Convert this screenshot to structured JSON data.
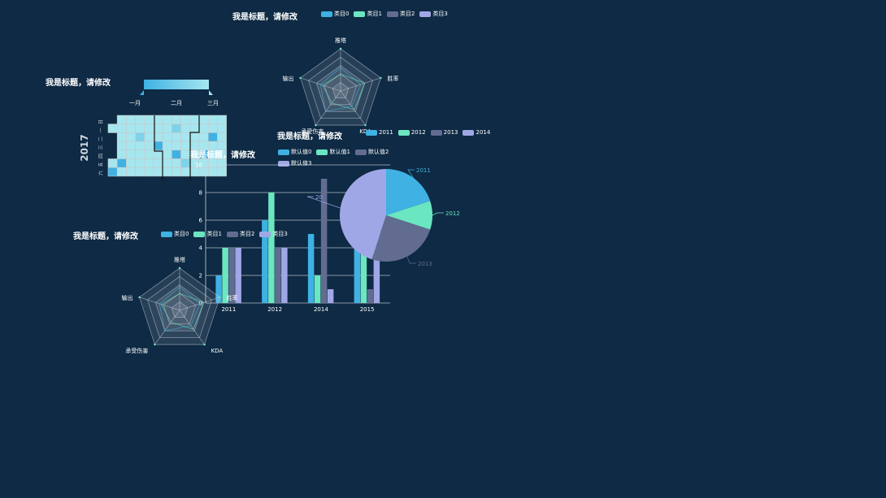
{
  "colors": {
    "c0": "#3fb1e3",
    "c1": "#6be6c1",
    "c2": "#626c91",
    "c3": "#a0a7e6",
    "grid": "#9aa3ad",
    "bg": "#0e2a44"
  },
  "radar_top": {
    "title": "我是标题，请修改",
    "legend": [
      "类目0",
      "类目1",
      "类目2",
      "类目3"
    ],
    "indicators": [
      "推塔",
      "胜率",
      "KDA",
      "承受伤害",
      "输出"
    ]
  },
  "calendar": {
    "title": "我是标题，请修改",
    "year": "2017",
    "months": [
      "一月",
      "二月",
      "三月"
    ],
    "weekdays": [
      "日",
      "一",
      "二",
      "三",
      "四",
      "五",
      "六"
    ]
  },
  "bar": {
    "title": "我是标题，请修改",
    "legend": [
      "默认值0",
      "默认值1",
      "默认值2",
      "默认值3"
    ],
    "chart_data": {
      "type": "bar",
      "categories": [
        "2011",
        "2012",
        "2014",
        "2015"
      ],
      "series": [
        {
          "name": "默认值0",
          "values": [
            2,
            6,
            5,
            8
          ]
        },
        {
          "name": "默认值1",
          "values": [
            4,
            8,
            2,
            6
          ]
        },
        {
          "name": "默认值2",
          "values": [
            4,
            4,
            9,
            1
          ]
        },
        {
          "name": "默认值3",
          "values": [
            4,
            4,
            1,
            6
          ]
        }
      ],
      "ylim": [
        0,
        10
      ],
      "yticks": [
        "0",
        "2",
        "4",
        "6",
        "8",
        "10"
      ]
    }
  },
  "pie": {
    "title": "我是标题，请修改",
    "legend": [
      "2011",
      "2012",
      "2013",
      "2014"
    ],
    "chart_data": {
      "type": "pie",
      "labels": [
        "2011",
        "2012",
        "2013",
        "2014"
      ],
      "values": [
        20,
        10,
        25,
        45
      ],
      "visible_labels": [
        "2011",
        "2012",
        "2013",
        "20"
      ]
    }
  },
  "radar_bottom": {
    "title": "我是标题，请修改",
    "legend": [
      "类目0",
      "类目1",
      "类目2",
      "类目3"
    ],
    "indicators": [
      "推塔",
      "胜率",
      "KDA",
      "承受伤害",
      "输出"
    ]
  }
}
